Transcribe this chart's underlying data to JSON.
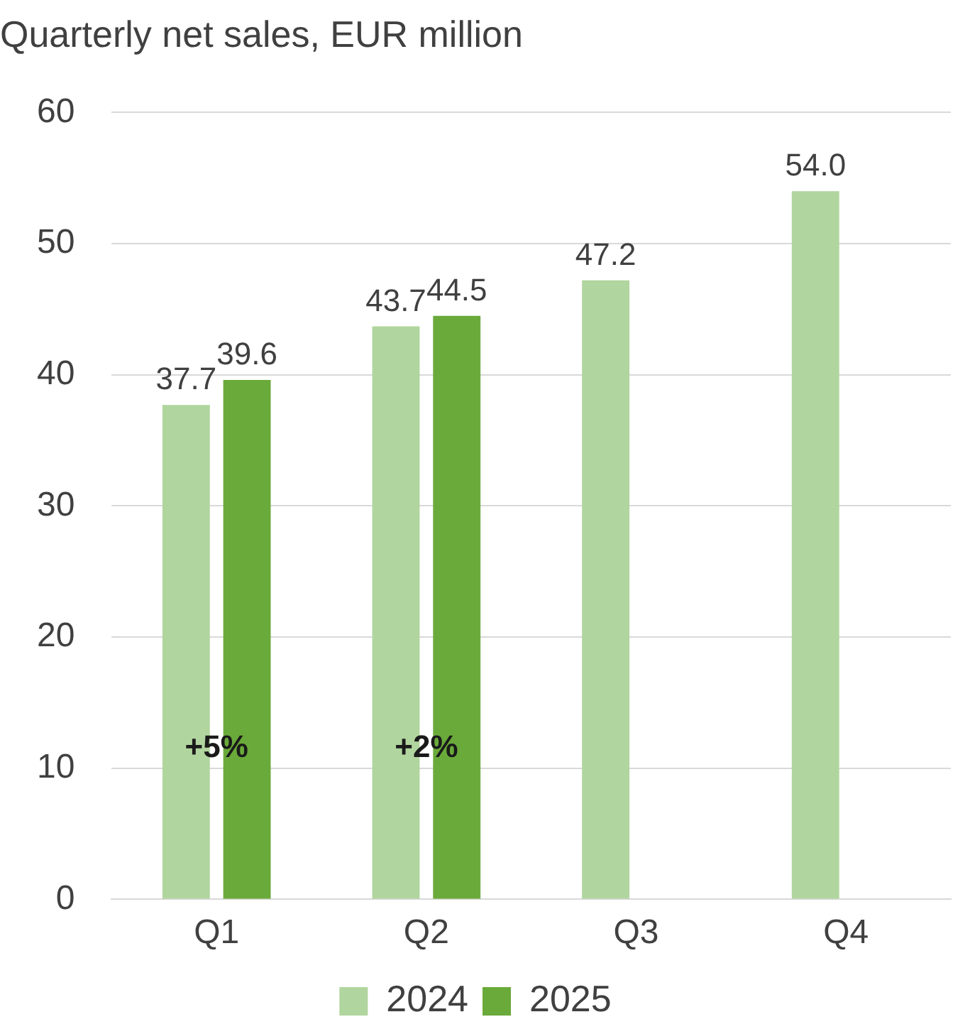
{
  "chart_data": {
    "type": "bar",
    "title": "Quarterly net sales, EUR million",
    "categories": [
      "Q1",
      "Q2",
      "Q3",
      "Q4"
    ],
    "series": [
      {
        "name": "2024",
        "color": "#b1d59e",
        "values": [
          37.7,
          43.7,
          47.2,
          54.0
        ],
        "value_labels": [
          "37.7",
          "43.7",
          "47.2",
          "54.0"
        ]
      },
      {
        "name": "2025",
        "color": "#6aaa3a",
        "values": [
          39.6,
          44.5,
          null,
          null
        ],
        "value_labels": [
          "39.6",
          "44.5",
          null,
          null
        ]
      }
    ],
    "ylim": [
      0,
      60
    ],
    "yticks": [
      0,
      10,
      20,
      30,
      40,
      50,
      60
    ],
    "grid": "y",
    "legend": "bottom",
    "annotations": [
      {
        "text": "+5%",
        "x": "Q1",
        "y": 11.5
      },
      {
        "text": "+2%",
        "x": "Q2",
        "y": 11.5
      }
    ]
  }
}
